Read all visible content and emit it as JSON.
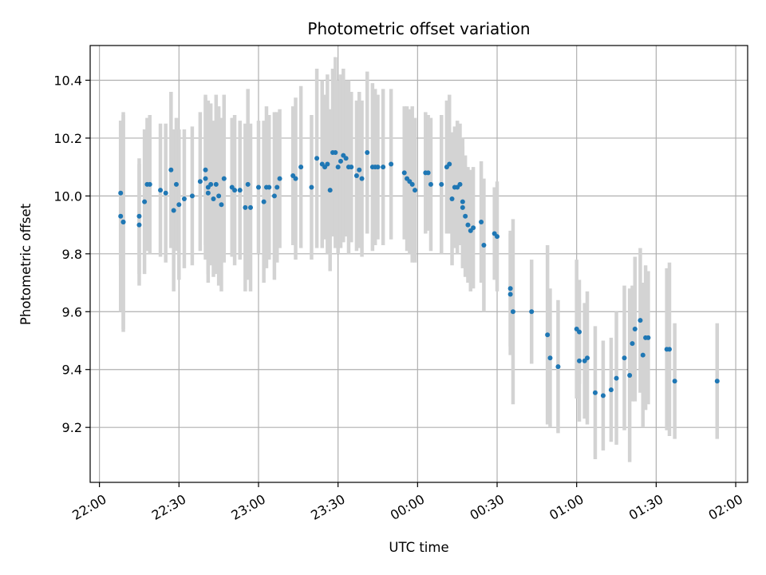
{
  "chart_data": {
    "type": "scatter",
    "title": "Photometric offset variation",
    "xlabel": "UTC time",
    "ylabel": "Photometric offset",
    "x_ticks": [
      "22:00",
      "22:30",
      "23:00",
      "23:30",
      "00:00",
      "00:30",
      "01:00",
      "01:30",
      "02:00"
    ],
    "x_range_minutes": [
      -3.5,
      244.5
    ],
    "y_ticks": [
      "9.2",
      "9.4",
      "9.6",
      "9.8",
      "10.0",
      "10.2",
      "10.4"
    ],
    "ylim": [
      9.01,
      10.52
    ],
    "grid": true,
    "point_color": "#1f77b4",
    "errorbar_color": "#d3d3d3",
    "series": [
      {
        "x_time": [
          "22:08",
          "22:08",
          "22:09",
          "22:09",
          "22:15",
          "22:15",
          "22:17",
          "22:18",
          "22:19",
          "22:23",
          "22:25",
          "22:27",
          "22:28",
          "22:29",
          "22:30",
          "22:32",
          "22:35",
          "22:38",
          "22:40",
          "22:40",
          "22:41",
          "22:41",
          "22:42",
          "22:43",
          "22:44",
          "22:45",
          "22:46",
          "22:47",
          "22:50",
          "22:51",
          "22:53",
          "22:55",
          "22:56",
          "22:57",
          "23:00",
          "23:02",
          "23:03",
          "23:04",
          "23:06",
          "23:07",
          "23:08",
          "23:13",
          "23:14",
          "23:16",
          "23:20",
          "23:22",
          "23:24",
          "23:25",
          "23:26",
          "23:27",
          "23:28",
          "23:29",
          "23:30",
          "23:31",
          "23:32",
          "23:33",
          "23:34",
          "23:35",
          "23:37",
          "23:38",
          "23:39",
          "23:41",
          "23:43",
          "23:44",
          "23:45",
          "23:47",
          "23:50",
          "23:55",
          "23:56",
          "23:57",
          "23:58",
          "23:59",
          "00:03",
          "00:04",
          "00:05",
          "00:09",
          "00:11",
          "00:12",
          "00:13",
          "00:14",
          "00:15",
          "00:16",
          "00:17",
          "00:17",
          "00:18",
          "00:19",
          "00:20",
          "00:21",
          "00:24",
          "00:25",
          "00:29",
          "00:30",
          "00:35",
          "00:35",
          "00:36",
          "00:43",
          "00:49",
          "00:50",
          "00:53",
          "01:00",
          "01:01",
          "01:01",
          "01:03",
          "01:04",
          "01:07",
          "01:10",
          "01:13",
          "01:15",
          "01:18",
          "01:20",
          "01:21",
          "01:22",
          "01:24",
          "01:25",
          "01:26",
          "01:27",
          "01:34",
          "01:35",
          "01:37",
          "01:53"
        ],
        "y": [
          10.01,
          9.93,
          9.91,
          9.91,
          9.9,
          9.93,
          9.98,
          10.04,
          10.04,
          10.02,
          10.01,
          10.09,
          9.95,
          10.04,
          9.97,
          9.99,
          10.0,
          10.05,
          10.09,
          10.06,
          10.03,
          10.01,
          10.04,
          9.99,
          10.04,
          10.0,
          9.97,
          10.06,
          10.03,
          10.02,
          10.02,
          9.96,
          10.04,
          9.96,
          10.03,
          9.98,
          10.03,
          10.03,
          10.0,
          10.03,
          10.06,
          10.07,
          10.06,
          10.1,
          10.03,
          10.13,
          10.11,
          10.1,
          10.11,
          10.02,
          10.15,
          10.15,
          10.1,
          10.12,
          10.14,
          10.13,
          10.1,
          10.1,
          10.07,
          10.09,
          10.06,
          10.15,
          10.1,
          10.1,
          10.1,
          10.1,
          10.11,
          10.08,
          10.06,
          10.05,
          10.04,
          10.02,
          10.08,
          10.08,
          10.04,
          10.04,
          10.1,
          10.11,
          9.99,
          10.03,
          10.03,
          10.04,
          9.96,
          9.98,
          9.93,
          9.9,
          9.88,
          9.89,
          9.91,
          9.83,
          9.87,
          9.86,
          9.66,
          9.68,
          9.6,
          9.6,
          9.52,
          9.44,
          9.41,
          9.54,
          9.53,
          9.43,
          9.43,
          9.44,
          9.32,
          9.31,
          9.33,
          9.37,
          9.44,
          9.38,
          9.49,
          9.54,
          9.57,
          9.45,
          9.51,
          9.51,
          9.47,
          9.47,
          9.36,
          9.36
        ],
        "yerr": [
          0.25,
          0.33,
          0.38,
          0.37,
          0.21,
          0.2,
          0.25,
          0.23,
          0.24,
          0.23,
          0.24,
          0.27,
          0.28,
          0.23,
          0.26,
          0.24,
          0.24,
          0.24,
          0.26,
          0.28,
          0.3,
          0.31,
          0.28,
          0.27,
          0.31,
          0.31,
          0.3,
          0.29,
          0.24,
          0.26,
          0.24,
          0.29,
          0.33,
          0.29,
          0.23,
          0.28,
          0.28,
          0.25,
          0.29,
          0.26,
          0.24,
          0.24,
          0.28,
          0.28,
          0.25,
          0.31,
          0.29,
          0.25,
          0.31,
          0.28,
          0.29,
          0.33,
          0.3,
          0.3,
          0.3,
          0.27,
          0.3,
          0.26,
          0.26,
          0.27,
          0.27,
          0.28,
          0.29,
          0.27,
          0.25,
          0.27,
          0.26,
          0.23,
          0.25,
          0.25,
          0.27,
          0.25,
          0.21,
          0.2,
          0.23,
          0.24,
          0.23,
          0.24,
          0.23,
          0.21,
          0.23,
          0.21,
          0.21,
          0.22,
          0.21,
          0.2,
          0.21,
          0.21,
          0.21,
          0.23,
          0.16,
          0.19,
          0.21,
          0.2,
          0.32,
          0.18,
          0.31,
          0.24,
          0.23,
          0.24,
          0.18,
          0.21,
          0.2,
          0.23,
          0.23,
          0.19,
          0.18,
          0.23,
          0.25,
          0.3,
          0.2,
          0.25,
          0.25,
          0.25,
          0.25,
          0.23,
          0.28,
          0.3,
          0.2,
          0.2
        ]
      }
    ]
  }
}
